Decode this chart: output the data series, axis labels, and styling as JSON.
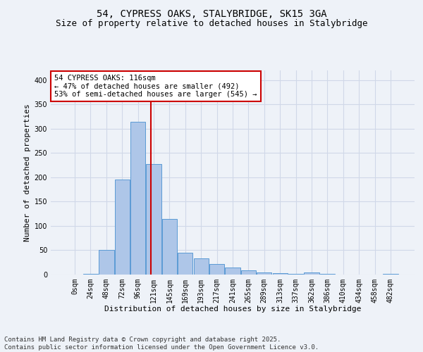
{
  "title1": "54, CYPRESS OAKS, STALYBRIDGE, SK15 3GA",
  "title2": "Size of property relative to detached houses in Stalybridge",
  "xlabel": "Distribution of detached houses by size in Stalybridge",
  "ylabel": "Number of detached properties",
  "bin_labels": [
    "0sqm",
    "24sqm",
    "48sqm",
    "72sqm",
    "96sqm",
    "121sqm",
    "145sqm",
    "169sqm",
    "193sqm",
    "217sqm",
    "241sqm",
    "265sqm",
    "289sqm",
    "313sqm",
    "337sqm",
    "362sqm",
    "386sqm",
    "410sqm",
    "434sqm",
    "458sqm",
    "482sqm"
  ],
  "bar_values": [
    0,
    1,
    50,
    195,
    315,
    228,
    115,
    45,
    34,
    22,
    14,
    9,
    4,
    3,
    1,
    4,
    1,
    0,
    0,
    0,
    1
  ],
  "bar_color": "#aec6e8",
  "bar_edge_color": "#5b9bd5",
  "grid_color": "#d0d8e8",
  "bg_color": "#eef2f8",
  "annotation_text": "54 CYPRESS OAKS: 116sqm\n← 47% of detached houses are smaller (492)\n53% of semi-detached houses are larger (545) →",
  "annotation_box_color": "#ffffff",
  "annotation_box_edge": "#cc0000",
  "vline_x": 4.83,
  "vline_color": "#cc0000",
  "ylim": [
    0,
    420
  ],
  "yticks": [
    0,
    50,
    100,
    150,
    200,
    250,
    300,
    350,
    400
  ],
  "footnote": "Contains HM Land Registry data © Crown copyright and database right 2025.\nContains public sector information licensed under the Open Government Licence v3.0.",
  "title1_fontsize": 10,
  "title2_fontsize": 9,
  "xlabel_fontsize": 8,
  "ylabel_fontsize": 8,
  "tick_fontsize": 7,
  "annotation_fontsize": 7.5,
  "footnote_fontsize": 6.5
}
